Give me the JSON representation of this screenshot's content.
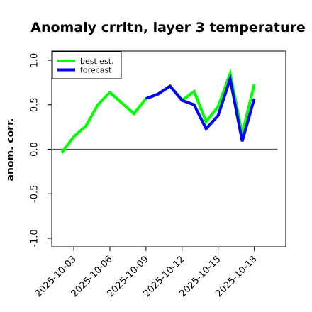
{
  "chart_data": {
    "type": "line",
    "title": "Anomaly crrltn, layer 3 temperature",
    "xlabel": "",
    "ylabel": "anom. corr.",
    "ylim": [
      -1.0,
      1.0
    ],
    "xlim": [
      "2025-10-01",
      "2025-10-19"
    ],
    "y_ticks": [
      "-1.0",
      "-0.5",
      "0.0",
      "0.5",
      "1.0"
    ],
    "y_tick_values": [
      -1.0,
      -0.5,
      0.0,
      0.5,
      1.0
    ],
    "x_ticks": [
      "2025-10-03",
      "2025-10-06",
      "2025-10-09",
      "2025-10-12",
      "2025-10-15",
      "2025-10-18"
    ],
    "highlight_x_tick": "2025-10-09",
    "reference_line_y": 0.0,
    "grid": false,
    "legend_position": "top-left",
    "series": [
      {
        "name": "best est.",
        "color": "#00ff00",
        "x": [
          "2025-10-02",
          "2025-10-03",
          "2025-10-04",
          "2025-10-05",
          "2025-10-06",
          "2025-10-07",
          "2025-10-08",
          "2025-10-09",
          "2025-10-10",
          "2025-10-11",
          "2025-10-12",
          "2025-10-13",
          "2025-10-14",
          "2025-10-15",
          "2025-10-16",
          "2025-10-17",
          "2025-10-18"
        ],
        "values": [
          -0.04,
          0.14,
          0.26,
          0.5,
          0.64,
          0.52,
          0.4,
          0.57,
          0.62,
          0.71,
          0.55,
          0.65,
          0.31,
          0.48,
          0.85,
          0.17,
          0.73
        ]
      },
      {
        "name": "forecast",
        "color": "#0000ff",
        "x": [
          "2025-10-09",
          "2025-10-10",
          "2025-10-11",
          "2025-10-12",
          "2025-10-13",
          "2025-10-14",
          "2025-10-15",
          "2025-10-16",
          "2025-10-17",
          "2025-10-18"
        ],
        "values": [
          0.57,
          0.62,
          0.71,
          0.55,
          0.5,
          0.23,
          0.38,
          0.79,
          0.09,
          0.57
        ]
      }
    ]
  }
}
